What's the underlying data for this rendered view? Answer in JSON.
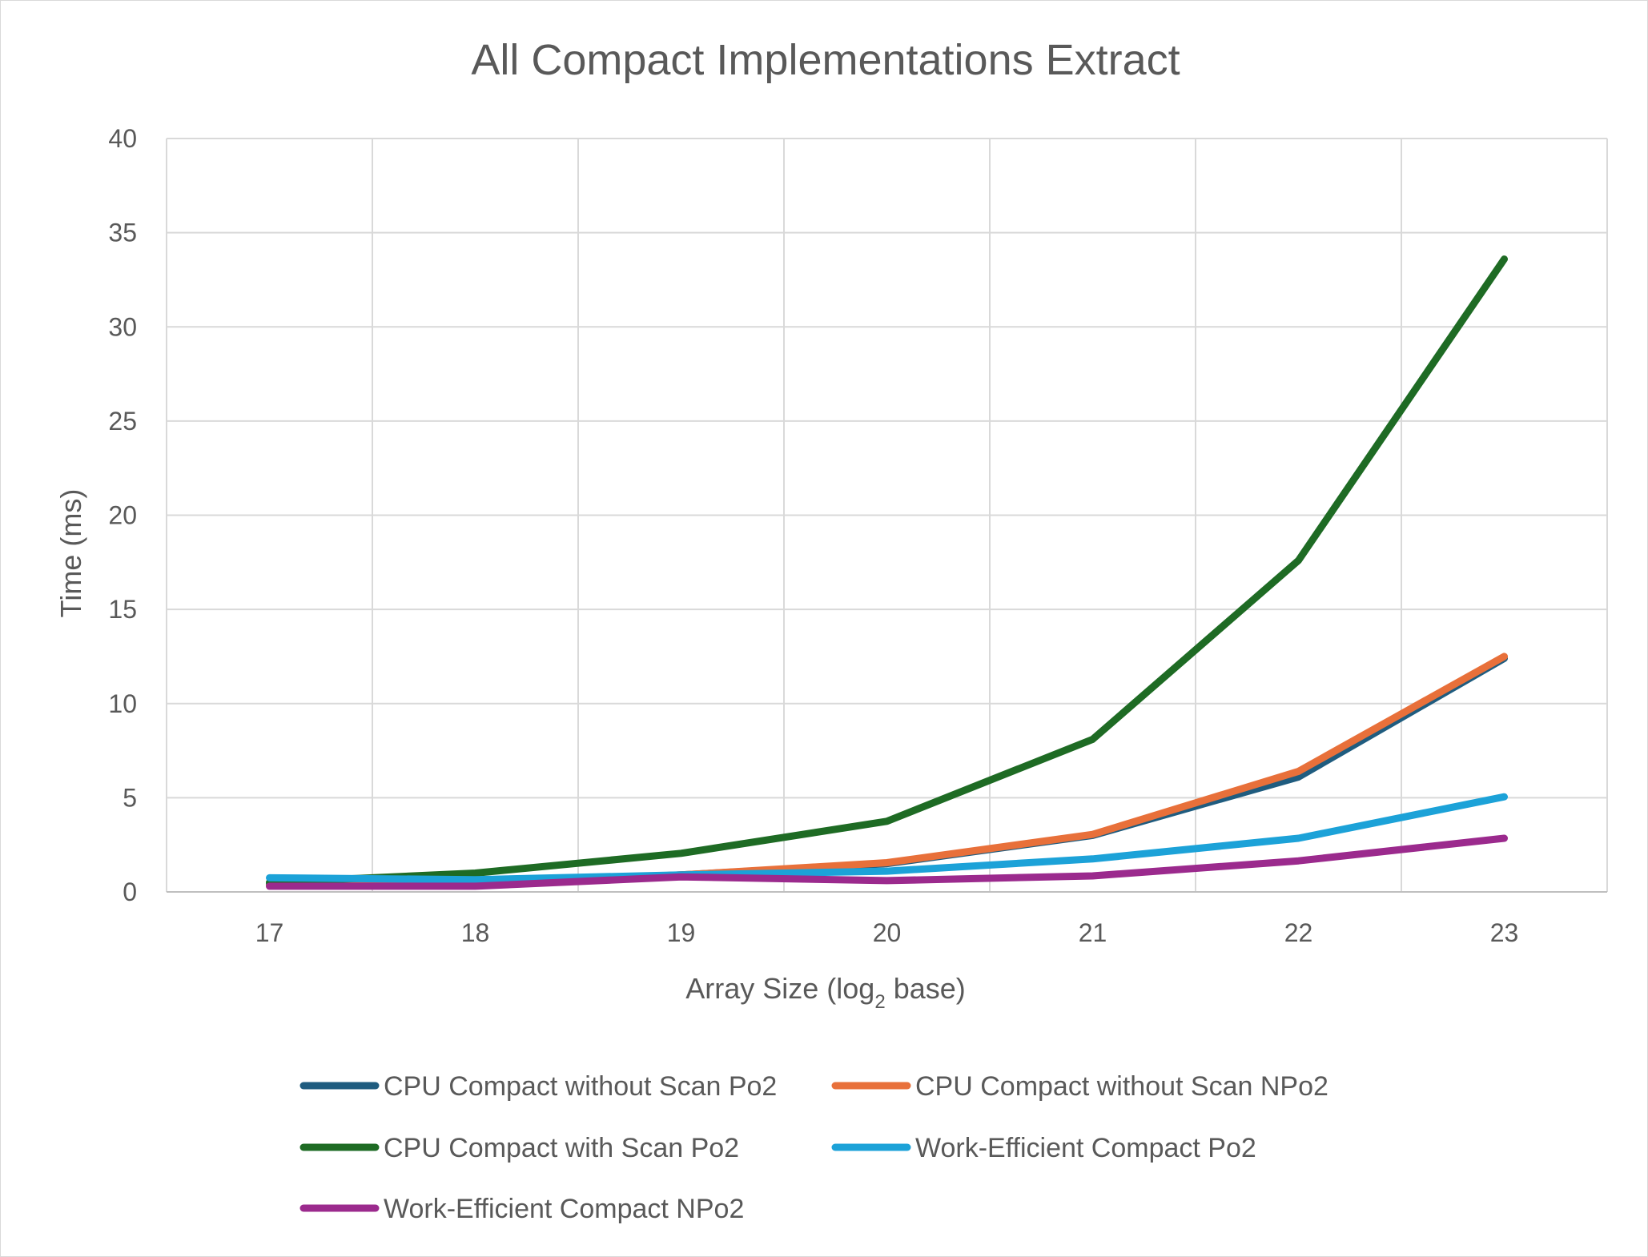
{
  "chart_data": {
    "type": "line",
    "title": "All Compact Implementations Extract",
    "xlabel": "Array Size (log",
    "xlabel_sub": "2",
    "xlabel_suffix": " base)",
    "ylabel": "Time (ms)",
    "x": [
      17,
      18,
      19,
      20,
      21,
      22,
      23
    ],
    "x_tick_labels": [
      "17",
      "18",
      "19",
      "20",
      "21",
      "22",
      "23"
    ],
    "ylim": [
      0,
      40
    ],
    "y_ticks": [
      0,
      5,
      10,
      15,
      20,
      25,
      30,
      35,
      40
    ],
    "y_tick_labels": [
      "0",
      "5",
      "10",
      "15",
      "20",
      "25",
      "30",
      "35",
      "40"
    ],
    "grid": true,
    "legend_position": "bottom",
    "series": [
      {
        "name": "CPU Compact without Scan Po2",
        "color": "#1f5c7f",
        "values": [
          0.4,
          0.45,
          0.9,
          1.5,
          3.0,
          6.1,
          12.4
        ]
      },
      {
        "name": "CPU Compact without Scan NPo2",
        "color": "#e8703a",
        "values": [
          0.35,
          0.45,
          0.9,
          1.55,
          3.05,
          6.4,
          12.5
        ]
      },
      {
        "name": "CPU Compact with Scan Po2",
        "color": "#1e6b24",
        "values": [
          0.5,
          1.0,
          2.05,
          3.75,
          8.1,
          17.6,
          33.6
        ]
      },
      {
        "name": "Work-Efficient Compact Po2",
        "color": "#1ca2d8",
        "values": [
          0.75,
          0.65,
          0.9,
          1.1,
          1.75,
          2.85,
          5.05
        ]
      },
      {
        "name": "Work-Efficient Compact NPo2",
        "color": "#9b2a8d",
        "values": [
          0.3,
          0.3,
          0.8,
          0.6,
          0.85,
          1.65,
          2.85
        ]
      }
    ]
  }
}
